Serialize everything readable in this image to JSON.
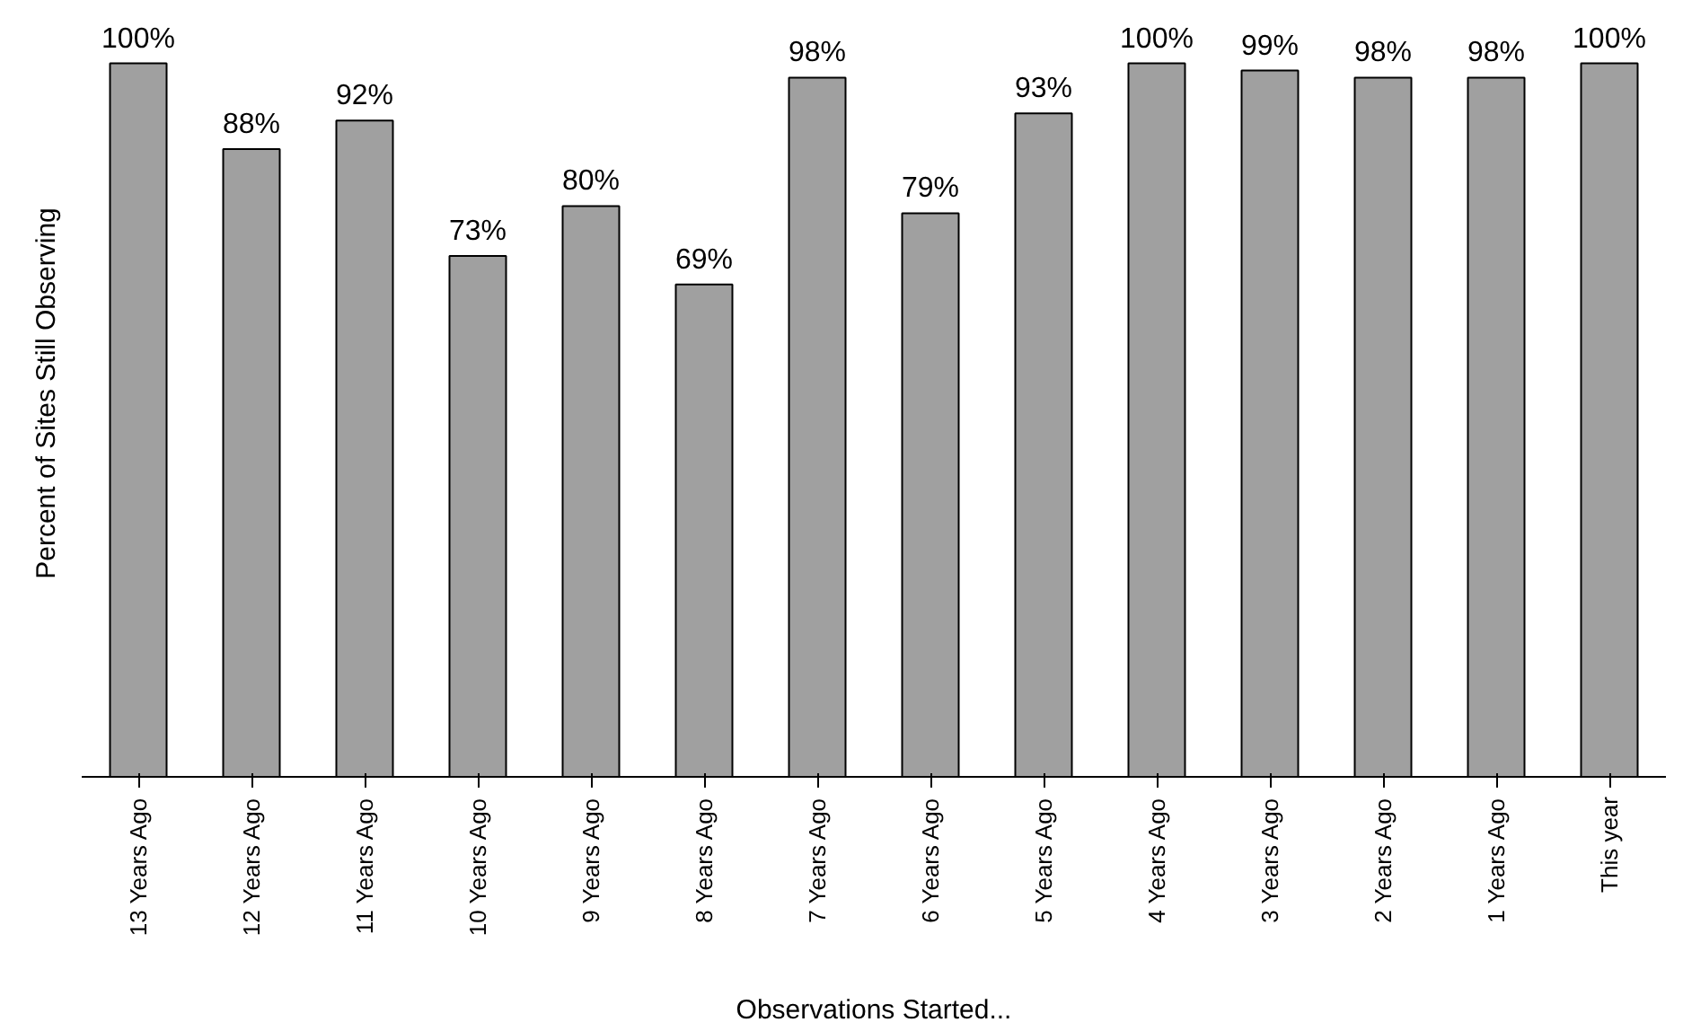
{
  "chart_data": {
    "type": "bar",
    "categories": [
      "13 Years Ago",
      "12 Years Ago",
      "11 Years Ago",
      "10 Years Ago",
      "9 Years Ago",
      "8 Years Ago",
      "7 Years Ago",
      "6 Years Ago",
      "5 Years Ago",
      "4 Years Ago",
      "3 Years Ago",
      "2 Years Ago",
      "1 Years Ago",
      "This year"
    ],
    "values": [
      100,
      88,
      92,
      73,
      80,
      69,
      98,
      79,
      93,
      100,
      99,
      98,
      98,
      100
    ],
    "value_labels": [
      "100%",
      "88%",
      "92%",
      "73%",
      "80%",
      "69%",
      "98%",
      "79%",
      "93%",
      "100%",
      "99%",
      "98%",
      "98%",
      "100%"
    ],
    "color": "#a0a0a0",
    "ylabel": "Percent of Sites Still Observing",
    "xlabel": "Observations Started...",
    "grid": false
  }
}
